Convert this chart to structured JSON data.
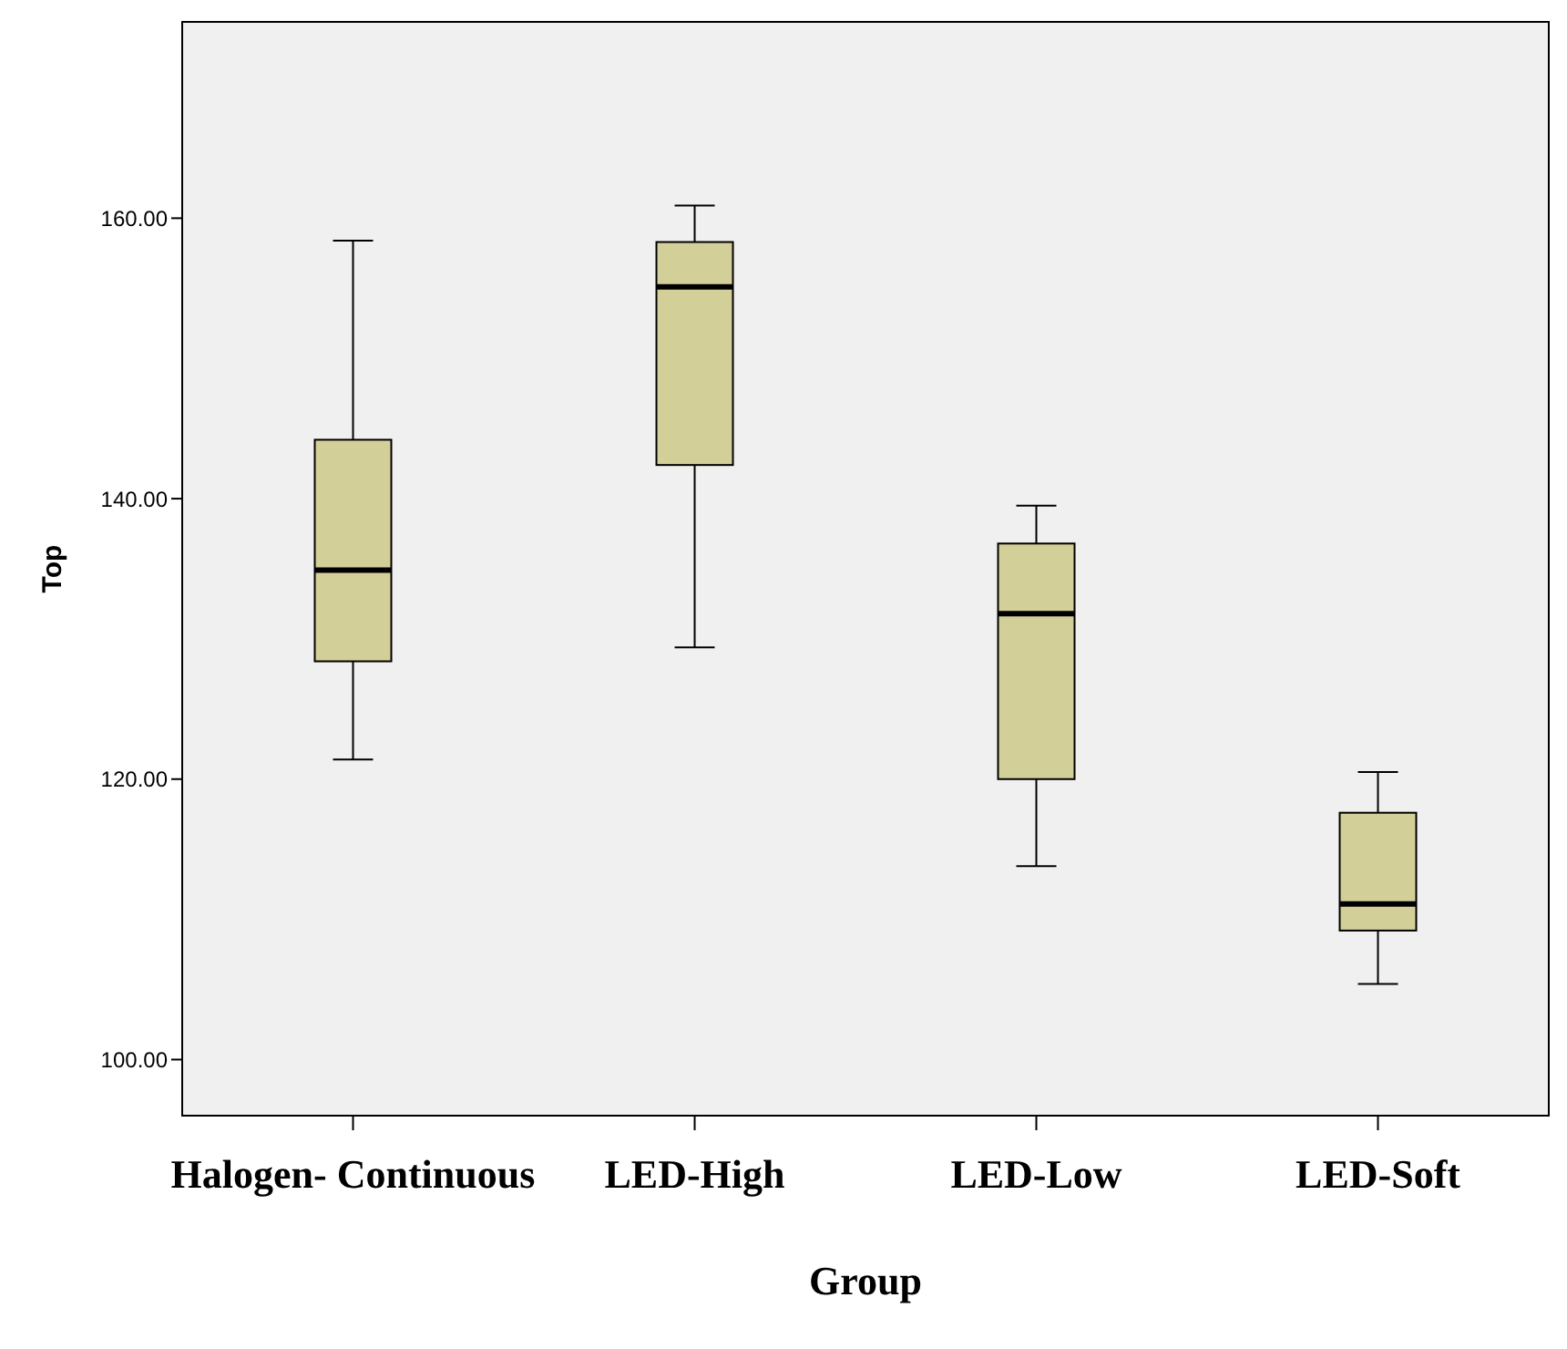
{
  "chart_data": {
    "type": "box",
    "xlabel": "Group",
    "ylabel": "Top",
    "categories": [
      "Halogen- Continuous",
      "LED-High",
      "LED-Low",
      "LED-Soft"
    ],
    "color": "#d3cf99",
    "boxes": [
      {
        "low": 121.4,
        "q1": 128.4,
        "median": 134.9,
        "q3": 144.2,
        "high": 158.4
      },
      {
        "low": 129.4,
        "q1": 142.4,
        "median": 155.1,
        "q3": 158.3,
        "high": 160.9
      },
      {
        "low": 113.8,
        "q1": 120.0,
        "median": 131.8,
        "q3": 136.8,
        "high": 139.5
      },
      {
        "low": 105.4,
        "q1": 109.2,
        "median": 111.1,
        "q3": 117.6,
        "high": 120.5
      }
    ],
    "ylim": [
      96,
      174
    ],
    "yticks": [
      {
        "value": 100,
        "label": "100.00"
      },
      {
        "value": 120,
        "label": "120.00"
      },
      {
        "value": 140,
        "label": "140.00"
      },
      {
        "value": 160,
        "label": "160.00"
      }
    ]
  }
}
